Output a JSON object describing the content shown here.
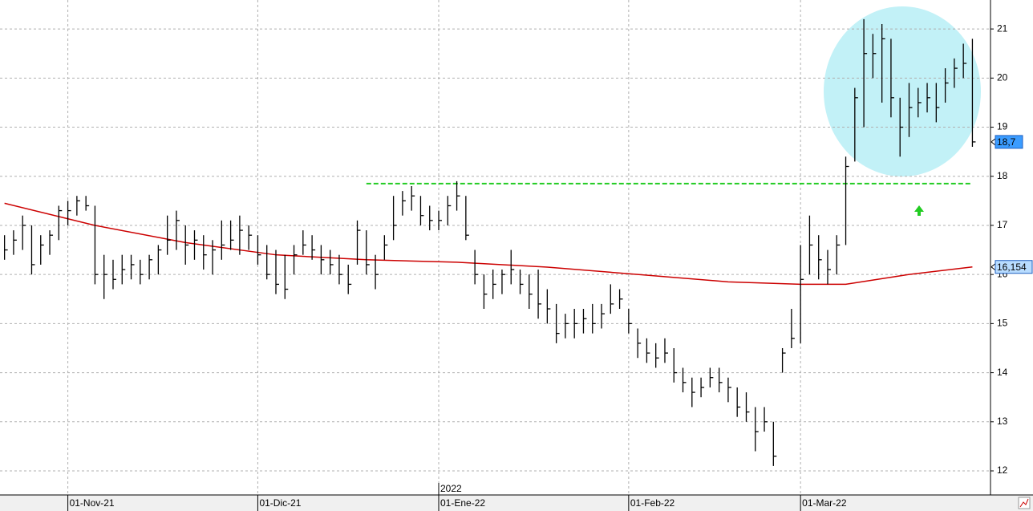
{
  "chart_data": {
    "type": "ohlc",
    "x": [
      0,
      1,
      2,
      3,
      4,
      5,
      6,
      7,
      8,
      9,
      10,
      11,
      12,
      13,
      14,
      15,
      16,
      17,
      18,
      19,
      20,
      21,
      22,
      23,
      24,
      25,
      26,
      27,
      28,
      29,
      30,
      31,
      32,
      33,
      34,
      35,
      36,
      37,
      38,
      39,
      40,
      41,
      42,
      43,
      44,
      45,
      46,
      47,
      48,
      49,
      50,
      51,
      52,
      53,
      54,
      55,
      56,
      57,
      58,
      59,
      60,
      61,
      62,
      63,
      64,
      65,
      66,
      67,
      68,
      69,
      70,
      71,
      72,
      73,
      74,
      75,
      76,
      77,
      78,
      79,
      80,
      81,
      82,
      83,
      84,
      85,
      86,
      87,
      88,
      89,
      90,
      91,
      92,
      93,
      94,
      95,
      96,
      97,
      98,
      99,
      100,
      101,
      102,
      103,
      104,
      105,
      106,
      107
    ],
    "high": [
      16.8,
      16.9,
      17.2,
      17.0,
      16.8,
      16.9,
      17.4,
      17.5,
      17.6,
      17.6,
      17.4,
      16.4,
      16.3,
      16.4,
      16.4,
      16.3,
      16.4,
      16.6,
      17.2,
      17.3,
      17.0,
      16.9,
      16.8,
      16.7,
      17.1,
      17.1,
      17.2,
      17.0,
      16.8,
      16.6,
      16.5,
      16.4,
      16.6,
      16.9,
      16.8,
      16.6,
      16.5,
      16.4,
      16.2,
      17.1,
      16.9,
      16.4,
      16.8,
      17.6,
      17.7,
      17.8,
      17.6,
      17.4,
      17.3,
      17.6,
      17.9,
      17.6,
      16.5,
      16.0,
      16.1,
      16.1,
      16.5,
      16.1,
      16.0,
      16.1,
      15.7,
      15.4,
      15.2,
      15.3,
      15.3,
      15.4,
      15.4,
      15.8,
      15.7,
      15.3,
      14.9,
      14.7,
      14.6,
      14.7,
      14.5,
      14.1,
      13.9,
      13.9,
      14.1,
      14.1,
      13.9,
      13.7,
      13.6,
      13.3,
      13.3,
      13.0,
      14.5,
      15.3,
      16.6,
      17.2,
      16.8,
      16.5,
      16.8,
      18.4,
      19.8,
      21.2,
      20.9,
      21.1,
      20.8,
      19.6,
      19.9,
      19.8,
      19.9,
      19.9,
      20.2,
      20.4,
      20.7,
      20.8
    ],
    "low": [
      16.3,
      16.4,
      16.5,
      16.0,
      16.2,
      16.4,
      16.7,
      17.0,
      17.2,
      17.3,
      15.8,
      15.5,
      15.7,
      15.8,
      15.9,
      15.8,
      15.9,
      16.0,
      16.4,
      16.5,
      16.2,
      16.3,
      16.1,
      16.0,
      16.3,
      16.5,
      16.4,
      16.5,
      16.2,
      15.9,
      15.6,
      15.5,
      16.0,
      16.4,
      16.3,
      16.0,
      16.0,
      15.8,
      15.6,
      16.2,
      16.0,
      15.7,
      16.3,
      16.7,
      17.2,
      17.3,
      17.0,
      16.9,
      16.9,
      17.0,
      17.3,
      16.7,
      15.8,
      15.3,
      15.5,
      15.6,
      15.8,
      15.6,
      15.3,
      15.1,
      15.0,
      14.6,
      14.7,
      14.7,
      14.8,
      14.8,
      14.9,
      15.2,
      15.3,
      14.8,
      14.3,
      14.2,
      14.1,
      14.2,
      13.8,
      13.6,
      13.3,
      13.5,
      13.7,
      13.6,
      13.4,
      13.1,
      13.0,
      12.4,
      12.8,
      12.1,
      14.0,
      14.5,
      14.6,
      16.0,
      15.9,
      15.8,
      16.0,
      16.6,
      18.3,
      19.0,
      20.0,
      19.5,
      19.2,
      18.4,
      18.8,
      19.2,
      19.3,
      19.1,
      19.5,
      19.8,
      20.0,
      18.6
    ],
    "close": [
      16.5,
      16.7,
      17.0,
      16.2,
      16.6,
      16.8,
      17.3,
      17.3,
      17.5,
      17.4,
      16.0,
      16.0,
      15.9,
      16.1,
      16.2,
      16.0,
      16.3,
      16.5,
      16.7,
      17.1,
      16.6,
      16.7,
      16.4,
      16.5,
      16.6,
      16.7,
      16.9,
      16.8,
      16.4,
      16.0,
      15.8,
      15.7,
      16.4,
      16.6,
      16.5,
      16.3,
      16.2,
      16.0,
      15.8,
      16.9,
      16.2,
      16.0,
      16.6,
      17.0,
      17.5,
      17.6,
      17.2,
      17.1,
      17.1,
      17.4,
      17.6,
      16.8,
      16.0,
      15.6,
      15.8,
      16.0,
      16.1,
      15.8,
      15.6,
      15.4,
      15.3,
      14.8,
      15.0,
      15.0,
      15.1,
      15.0,
      15.2,
      15.4,
      15.5,
      15.0,
      14.6,
      14.4,
      14.3,
      14.4,
      14.0,
      13.8,
      13.6,
      13.7,
      13.9,
      13.8,
      13.7,
      13.3,
      13.2,
      12.8,
      13.0,
      12.3,
      14.4,
      14.7,
      15.9,
      16.6,
      16.3,
      16.1,
      16.6,
      18.2,
      19.6,
      20.5,
      20.5,
      20.8,
      19.6,
      19.0,
      19.4,
      19.5,
      19.6,
      19.4,
      19.9,
      20.2,
      20.3,
      18.7
    ],
    "bar_color": "#000000",
    "ma": {
      "x": [
        0,
        10,
        20,
        30,
        40,
        50,
        60,
        70,
        80,
        88,
        93,
        100,
        107
      ],
      "values": [
        17.45,
        17.0,
        16.65,
        16.4,
        16.3,
        16.25,
        16.15,
        16.0,
        15.85,
        15.8,
        15.8,
        16.0,
        16.154
      ],
      "color": "#cc0000"
    },
    "resistance": {
      "value": 17.85,
      "x": [
        40,
        107
      ],
      "color": "#22cc22"
    },
    "xlim": [
      -0.5,
      109
    ],
    "xticks": [
      {
        "value": 7,
        "label": "01-Nov-21"
      },
      {
        "value": 28,
        "label": "01-Dic-21"
      },
      {
        "value": 48,
        "label": "01-Ene-22"
      },
      {
        "value": 69,
        "label": "01-Feb-22"
      },
      {
        "value": 88,
        "label": "01-Mar-22"
      }
    ],
    "year_label": "2022",
    "ylim": [
      11.51,
      21.59
    ],
    "yticks": [
      12,
      13,
      14,
      15,
      16,
      17,
      18,
      19,
      20,
      21
    ],
    "grid": true,
    "last_price": {
      "value": 18.7,
      "label": "18,7"
    },
    "ma_last": {
      "value": 16.154,
      "label": "16,154"
    }
  }
}
